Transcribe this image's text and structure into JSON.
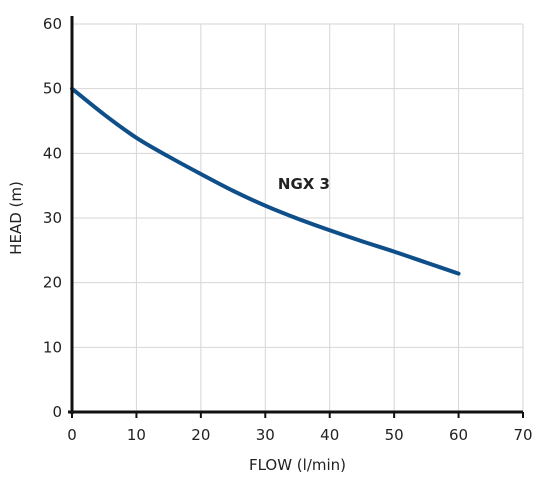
{
  "chart_data": {
    "type": "line",
    "title": "",
    "xlabel": "FLOW (l/min)",
    "ylabel": "HEAD (m)",
    "xlim": [
      0,
      70
    ],
    "ylim": [
      0,
      60
    ],
    "xticks": [
      "0",
      "10",
      "20",
      "30",
      "40",
      "50",
      "60",
      "70"
    ],
    "yticks": [
      "0",
      "10",
      "20",
      "30",
      "40",
      "50",
      "60"
    ],
    "grid": true,
    "series": [
      {
        "name": "NGX 3",
        "color": "#0e4f8a",
        "x": [
          0,
          5,
          10,
          15,
          20,
          25,
          30,
          35,
          40,
          45,
          50,
          55,
          60
        ],
        "y": [
          50,
          46,
          42.4,
          39.5,
          36.8,
          34.2,
          31.9,
          29.9,
          28.1,
          26.4,
          24.8,
          23.1,
          21.4
        ]
      }
    ]
  }
}
